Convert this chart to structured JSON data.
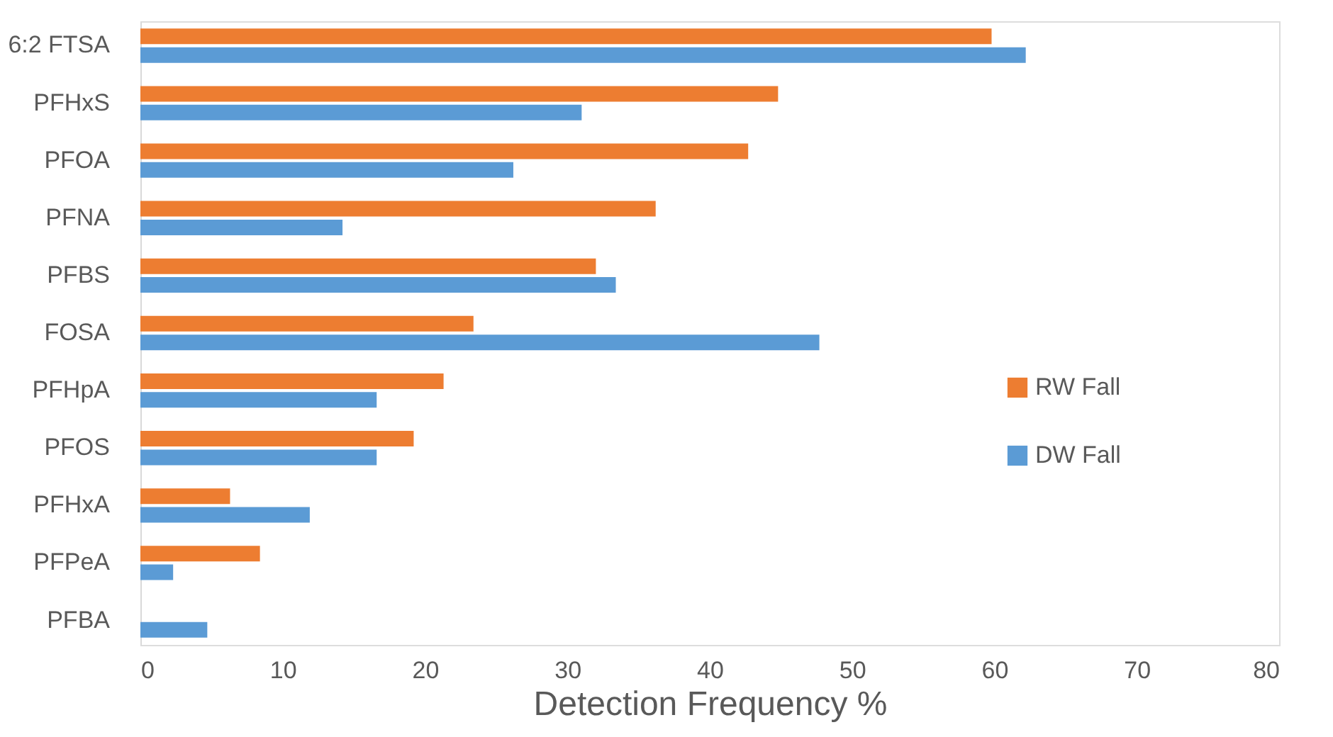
{
  "chart_data": {
    "type": "bar",
    "orientation": "horizontal",
    "xlabel": "Detection Frequency %",
    "categories": [
      "6:2 FTSA",
      "PFHxS",
      "PFOA",
      "PFNA",
      "PFBS",
      "FOSA",
      "PFHpA",
      "PFOS",
      "PFHxA",
      "PFPeA",
      "PFBA"
    ],
    "series": [
      {
        "name": "RW Fall",
        "color": "#ed7d31",
        "values": [
          59.8,
          44.8,
          42.7,
          36.2,
          32.0,
          23.4,
          21.3,
          19.2,
          6.3,
          8.4,
          null
        ]
      },
      {
        "name": "DW Fall",
        "color": "#5b9bd5",
        "values": [
          62.2,
          31.0,
          26.2,
          14.2,
          33.4,
          47.7,
          16.6,
          16.6,
          11.9,
          2.3,
          4.7
        ]
      }
    ],
    "xlim": [
      0,
      80
    ],
    "xticks": [
      0,
      10,
      20,
      30,
      40,
      50,
      60,
      70,
      80
    ],
    "grid": false,
    "legend": "right"
  }
}
